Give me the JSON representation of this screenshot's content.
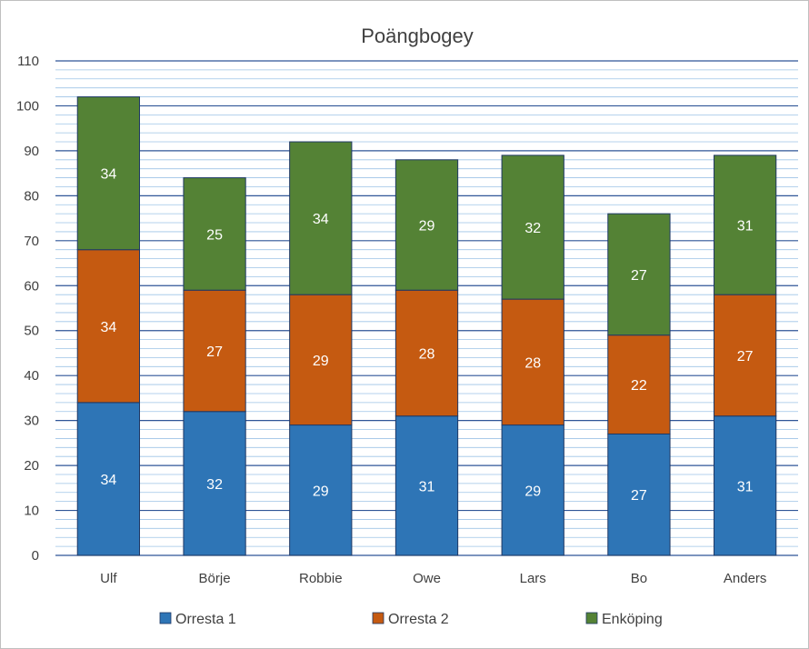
{
  "chart_data": {
    "type": "bar",
    "stacked": true,
    "title": "Poängbogey",
    "xlabel": "",
    "ylabel": "",
    "ylim": [
      0,
      110
    ],
    "yticks": [
      0,
      10,
      20,
      30,
      40,
      50,
      60,
      70,
      80,
      90,
      100,
      110
    ],
    "minor_step": 2,
    "categories": [
      "Ulf",
      "Börje",
      "Robbie",
      "Owe",
      "Lars",
      "Bo",
      "Anders"
    ],
    "series": [
      {
        "name": "Orresta 1",
        "color": "#2e75b6",
        "values": [
          34,
          32,
          29,
          31,
          29,
          27,
          31
        ]
      },
      {
        "name": "Orresta 2",
        "color": "#c55a11",
        "values": [
          34,
          27,
          29,
          28,
          28,
          22,
          27
        ]
      },
      {
        "name": "Enköping",
        "color": "#548235",
        "values": [
          34,
          25,
          34,
          29,
          32,
          27,
          31
        ]
      }
    ],
    "legend_position": "bottom",
    "grid": true
  }
}
